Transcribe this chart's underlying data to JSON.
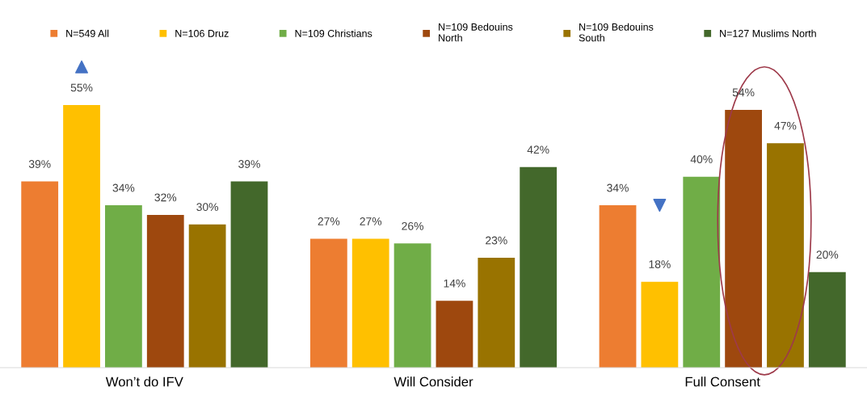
{
  "chart_data": {
    "type": "bar",
    "categories": [
      "Won’t do IFV",
      "Will Consider",
      "Full Consent"
    ],
    "series": [
      {
        "name": "N=549 All",
        "color": "#ed7d31",
        "values": [
          39,
          27,
          34
        ],
        "value_labels": [
          "39%",
          "27%",
          "34%"
        ]
      },
      {
        "name": "N=106 Druz",
        "color": "#ffc000",
        "values": [
          55,
          27,
          18
        ],
        "value_labels": [
          "55%",
          "27%",
          "18%"
        ]
      },
      {
        "name": "N=109 Christians",
        "color": "#70ad47",
        "values": [
          34,
          26,
          40
        ],
        "value_labels": [
          "34%",
          "26%",
          "40%"
        ]
      },
      {
        "name": "N=109 Bedouins\nNorth",
        "color": "#9e480e",
        "values": [
          32,
          14,
          54
        ],
        "value_labels": [
          "32%",
          "14%",
          "54%"
        ]
      },
      {
        "name": "N=109 Bedouins\nSouth",
        "color": "#997300",
        "values": [
          30,
          23,
          47
        ],
        "value_labels": [
          "30%",
          "23%",
          "47%"
        ]
      },
      {
        "name": "N=127 Muslims North",
        "color": "#43682b",
        "values": [
          39,
          42,
          20
        ],
        "value_labels": [
          "39%",
          "42%",
          "20%"
        ]
      }
    ],
    "legend": "top",
    "grid": false,
    "tick_labels": "x"
  }
}
